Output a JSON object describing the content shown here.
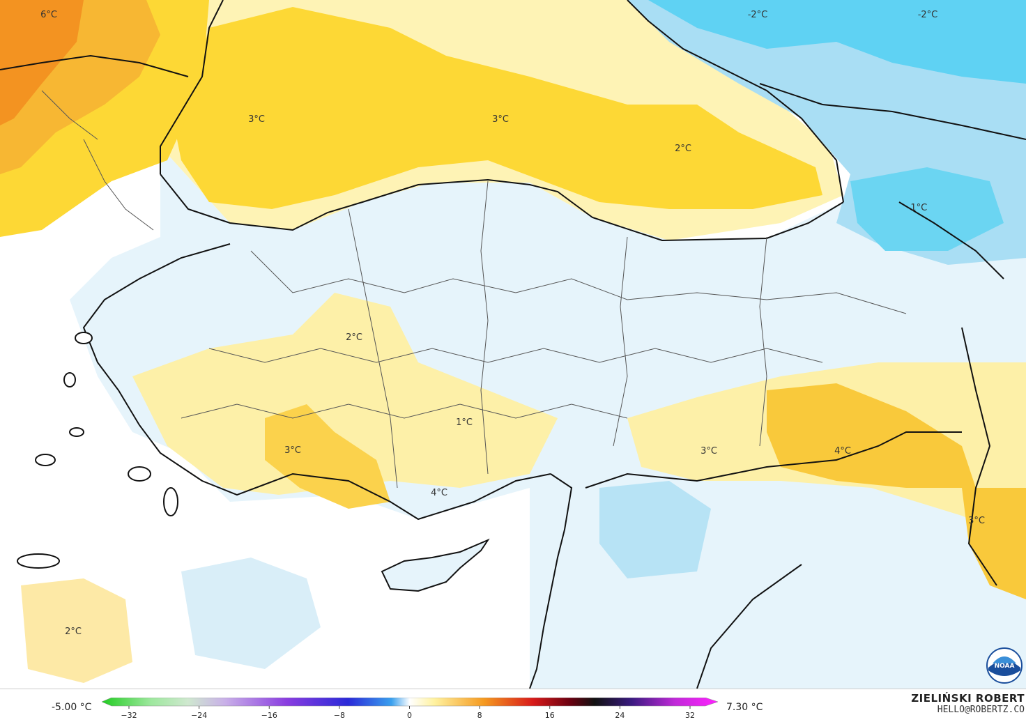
{
  "colors": {
    "warm_orange": "#f7b733",
    "warm_yellow": "#fdd835",
    "pale_yellow": "#fdf0a8",
    "very_pale_yellow": "#fef8d8",
    "pale_blue": "#e3f3fb",
    "light_blue": "#b7e3f5",
    "mid_blue": "#7fd3f3",
    "cyan": "#5ad2f4",
    "sea_white": "#ffffff",
    "border": "#111111"
  },
  "map_labels": [
    {
      "text": "6°C",
      "id": "temp-label-6c-balkans"
    },
    {
      "text": "3°C",
      "id": "temp-label-3c-black-sea-west"
    },
    {
      "text": "3°C",
      "id": "temp-label-3c-black-sea-center"
    },
    {
      "text": "2°C",
      "id": "temp-label-2c-black-sea-east"
    },
    {
      "text": "-2°C",
      "id": "temp-label-minus2c-caucasus-west"
    },
    {
      "text": "-2°C",
      "id": "temp-label-minus2c-caucasus-east"
    },
    {
      "text": "-1°C",
      "id": "temp-label-minus1c-armenia"
    },
    {
      "text": "2°C",
      "id": "temp-label-2c-central-anatolia"
    },
    {
      "text": "1°C",
      "id": "temp-label-1c-konya"
    },
    {
      "text": "3°C",
      "id": "temp-label-3c-antalya"
    },
    {
      "text": "4°C",
      "id": "temp-label-4c-mersin"
    },
    {
      "text": "3°C",
      "id": "temp-label-3c-southeast"
    },
    {
      "text": "4°C",
      "id": "temp-label-4c-mardin"
    },
    {
      "text": "3°C",
      "id": "temp-label-3c-iran"
    },
    {
      "text": "2°C",
      "id": "temp-label-2c-mediterranean"
    }
  ],
  "legend": {
    "min": "-5.00 °C",
    "max": "7.30 °C",
    "ticks": [
      -32,
      -24,
      -16,
      -8,
      0,
      8,
      16,
      24,
      32
    ],
    "tick_texts": [
      "−32",
      "−24",
      "−16",
      "−8",
      "0",
      "8",
      "16",
      "24",
      "32"
    ]
  },
  "credit": {
    "author": "ZIELIŃSKI ROBERT",
    "email": "HELLO@ROBERTZ.CO",
    "logo": "NOAA"
  }
}
